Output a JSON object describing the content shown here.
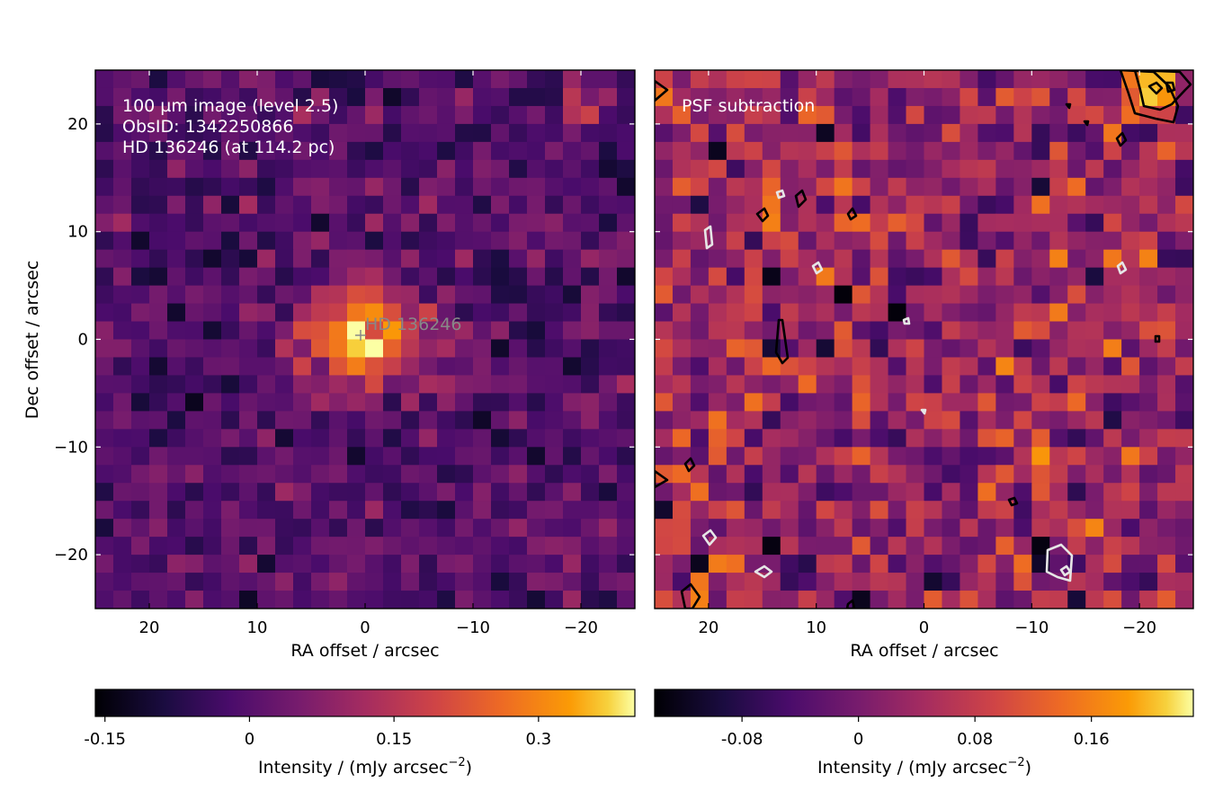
{
  "chart_data": [
    {
      "type": "heatmap",
      "panel": "left",
      "annotations": [
        "100 µm image (level 2.5)",
        "ObsID: 1342250866",
        "HD 136246 (at 114.2 pc)"
      ],
      "star_label": "HD 136246",
      "star_position": [
        0,
        0
      ],
      "xlabel": "RA offset / arcsec",
      "ylabel": "Dec offset / arcsec",
      "xlim": [
        25,
        -25
      ],
      "ylim": [
        -25,
        25
      ],
      "xticks": [
        20,
        10,
        0,
        -10,
        -20
      ],
      "xtick_labels": [
        "20",
        "10",
        "0",
        "−10",
        "−20"
      ],
      "yticks": [
        20,
        10,
        0,
        -10,
        -20
      ],
      "ytick_labels": [
        "20",
        "10",
        "0",
        "−10",
        "−20"
      ],
      "colormap": "inferno",
      "colorbar": {
        "range": [
          -0.16,
          0.4
        ],
        "ticks": [
          -0.15,
          0,
          0.15,
          0.3
        ],
        "tick_labels": [
          "-0.15",
          "0",
          "0.15",
          "0.3"
        ],
        "label_main": "Intensity / (mJy arcsec",
        "label_sup": "−2",
        "label_end": ")"
      },
      "source_peak": 0.35
    },
    {
      "type": "heatmap",
      "panel": "right",
      "annotations": [
        "PSF subtraction"
      ],
      "xlabel": "RA offset / arcsec",
      "xlim": [
        25,
        -25
      ],
      "ylim": [
        -25,
        25
      ],
      "xticks": [
        20,
        10,
        0,
        -10,
        -20
      ],
      "xtick_labels": [
        "20",
        "10",
        "0",
        "−10",
        "−20"
      ],
      "colormap": "inferno",
      "colorbar": {
        "range": [
          -0.14,
          0.23
        ],
        "ticks": [
          -0.08,
          0,
          0.08,
          0.16
        ],
        "tick_labels": [
          "-0.08",
          "0",
          "0.08",
          "0.16"
        ],
        "label_main": "Intensity / (mJy arcsec",
        "label_sup": "−2",
        "label_end": ")"
      },
      "contours": {
        "positive_color": "#000000",
        "negative_color": "#e6e6e6"
      }
    }
  ]
}
